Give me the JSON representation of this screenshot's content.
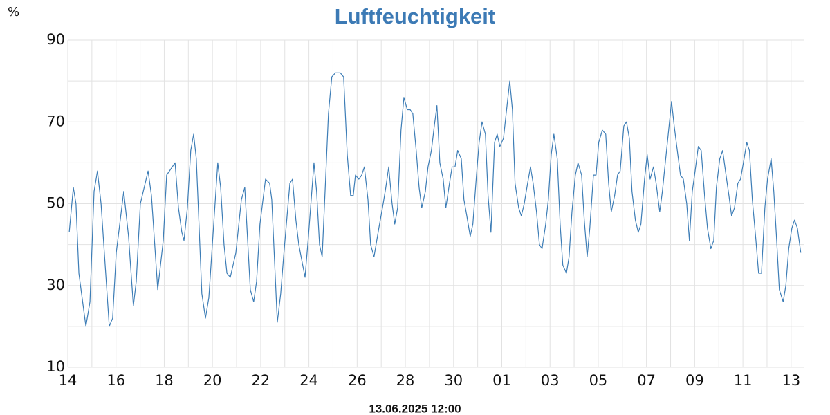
{
  "chart_data": {
    "type": "line",
    "title": "Luftfeuchtigkeit",
    "y_label": "%",
    "subtitle": "13.06.2025 12:00",
    "color": "#3d7db6",
    "grid": true,
    "ylim": [
      10,
      90
    ],
    "yticks": [
      10,
      30,
      50,
      70,
      90
    ],
    "xlim": [
      0,
      30.55
    ],
    "xticks": [
      {
        "value": 0,
        "label": "14"
      },
      {
        "value": 2,
        "label": "16"
      },
      {
        "value": 4,
        "label": "18"
      },
      {
        "value": 6,
        "label": "20"
      },
      {
        "value": 8,
        "label": "22"
      },
      {
        "value": 10,
        "label": "24"
      },
      {
        "value": 12,
        "label": "26"
      },
      {
        "value": 14,
        "label": "28"
      },
      {
        "value": 16,
        "label": "30"
      },
      {
        "value": 18,
        "label": "01"
      },
      {
        "value": 20,
        "label": "03"
      },
      {
        "value": 22,
        "label": "05"
      },
      {
        "value": 24,
        "label": "07"
      },
      {
        "value": 26,
        "label": "09"
      },
      {
        "value": 28,
        "label": "11"
      },
      {
        "value": 30,
        "label": "13"
      }
    ],
    "x": [
      0.06,
      0.23,
      0.34,
      0.46,
      0.75,
      0.92,
      1.09,
      1.23,
      1.38,
      1.72,
      1.86,
      2.01,
      2.32,
      2.52,
      2.72,
      2.84,
      3.01,
      3.33,
      3.47,
      3.73,
      3.96,
      4.1,
      4.45,
      4.59,
      4.73,
      4.82,
      4.96,
      5.1,
      5.22,
      5.33,
      5.56,
      5.71,
      5.85,
      6.22,
      6.34,
      6.48,
      6.6,
      6.74,
      6.97,
      7.2,
      7.34,
      7.57,
      7.71,
      7.83,
      7.97,
      8.2,
      8.37,
      8.46,
      8.69,
      8.83,
      8.95,
      9.21,
      9.32,
      9.46,
      9.58,
      9.84,
      9.98,
      10.21,
      10.32,
      10.44,
      10.55,
      10.7,
      10.81,
      10.95,
      11.1,
      11.3,
      11.44,
      11.59,
      11.73,
      11.84,
      11.93,
      12.07,
      12.19,
      12.3,
      12.45,
      12.56,
      12.7,
      12.9,
      13.08,
      13.19,
      13.31,
      13.45,
      13.56,
      13.68,
      13.82,
      13.94,
      14.08,
      14.2,
      14.31,
      14.45,
      14.57,
      14.68,
      14.83,
      14.94,
      15.08,
      15.2,
      15.31,
      15.43,
      15.57,
      15.68,
      15.83,
      15.94,
      16.06,
      16.17,
      16.32,
      16.43,
      16.55,
      16.69,
      16.8,
      16.95,
      17.06,
      17.18,
      17.32,
      17.43,
      17.55,
      17.7,
      17.81,
      17.92,
      18.07,
      18.18,
      18.33,
      18.44,
      18.55,
      18.7,
      18.81,
      18.93,
      19.07,
      19.19,
      19.3,
      19.44,
      19.56,
      19.67,
      19.82,
      19.93,
      20.05,
      20.16,
      20.3,
      20.42,
      20.53,
      20.68,
      20.79,
      20.91,
      21.05,
      21.16,
      21.31,
      21.42,
      21.54,
      21.65,
      21.8,
      21.91,
      22.02,
      22.17,
      22.31,
      22.43,
      22.54,
      22.68,
      22.8,
      22.91,
      23.06,
      23.17,
      23.29,
      23.4,
      23.54,
      23.66,
      23.77,
      23.92,
      24.03,
      24.15,
      24.29,
      24.4,
      24.55,
      24.66,
      24.78,
      24.92,
      25.04,
      25.15,
      25.3,
      25.41,
      25.53,
      25.67,
      25.78,
      25.9,
      26.04,
      26.15,
      26.27,
      26.41,
      26.53,
      26.67,
      26.79,
      26.9,
      27.04,
      27.16,
      27.3,
      27.42,
      27.53,
      27.65,
      27.79,
      27.9,
      28.02,
      28.16,
      28.27,
      28.39,
      28.54,
      28.65,
      28.77,
      28.91,
      29.02,
      29.17,
      29.28,
      29.4,
      29.51,
      29.67,
      29.78,
      29.9,
      30.03,
      30.14,
      30.26,
      30.4
    ],
    "values": [
      43,
      54,
      50,
      33,
      20,
      26,
      53,
      58,
      50,
      20,
      22,
      38,
      53,
      42,
      25,
      31,
      50,
      58,
      52,
      29,
      41,
      57,
      60,
      49,
      43,
      41,
      49,
      63,
      67,
      61,
      28,
      22,
      27,
      60,
      54,
      40,
      33,
      32,
      38,
      51,
      54,
      29,
      26,
      31,
      45,
      56,
      55,
      51,
      21,
      28,
      37,
      55,
      56,
      46,
      40,
      32,
      42,
      60,
      53,
      40,
      37,
      57,
      72,
      81,
      82,
      82,
      81,
      62,
      52,
      52,
      57,
      56,
      57,
      59,
      51,
      40,
      37,
      44,
      50,
      54,
      59,
      50,
      45,
      49,
      68,
      76,
      73,
      73,
      72,
      63,
      54,
      49,
      53,
      59,
      63,
      69,
      74,
      60,
      56,
      49,
      55,
      59,
      59,
      63,
      61,
      51,
      47,
      42,
      45,
      57,
      65,
      70,
      67,
      52,
      43,
      65,
      67,
      64,
      66,
      72,
      80,
      73,
      55,
      49,
      47,
      50,
      55,
      59,
      55,
      48,
      40,
      39,
      45,
      51,
      62,
      67,
      61,
      45,
      35,
      33,
      37,
      48,
      57,
      60,
      57,
      46,
      37,
      44,
      57,
      57,
      65,
      68,
      67,
      55,
      48,
      52,
      57,
      58,
      69,
      70,
      66,
      53,
      46,
      43,
      45,
      56,
      62,
      56,
      59,
      55,
      48,
      53,
      60,
      68,
      75,
      69,
      62,
      57,
      56,
      50,
      41,
      53,
      59,
      64,
      63,
      52,
      44,
      39,
      41,
      54,
      61,
      63,
      57,
      52,
      47,
      49,
      55,
      56,
      60,
      65,
      63,
      51,
      41,
      33,
      33,
      49,
      56,
      61,
      53,
      41,
      29,
      26,
      30,
      39,
      44,
      46,
      44,
      38
    ]
  }
}
